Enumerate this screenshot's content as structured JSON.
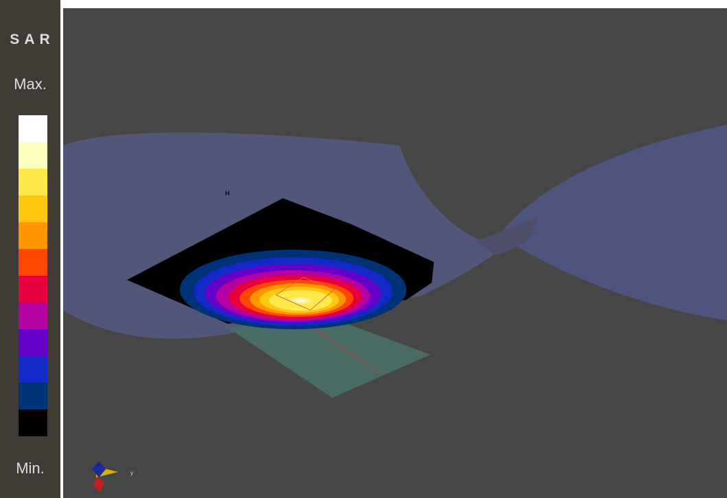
{
  "sidebar": {
    "title": "S A R",
    "max_label": "Max.",
    "min_label": "Min."
  },
  "viewport": {
    "marker_label": "H",
    "axis_label": "y"
  }
}
